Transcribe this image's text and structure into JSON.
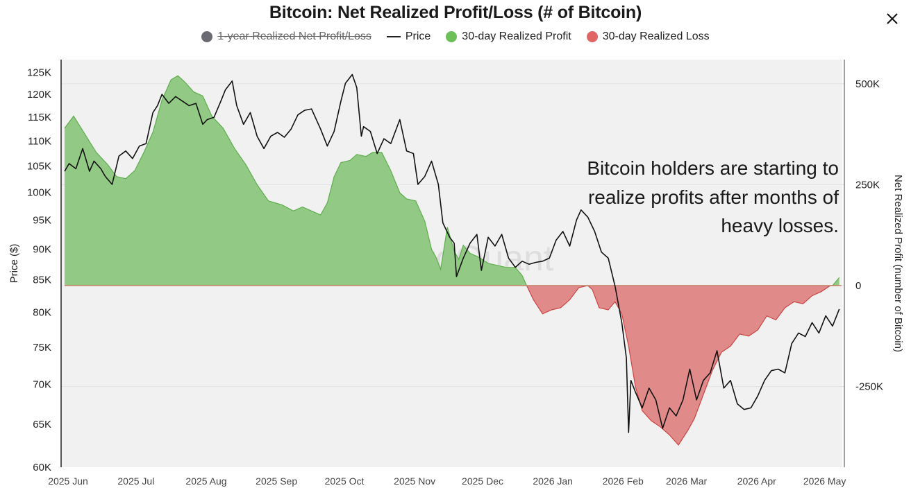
{
  "chart_data": {
    "type": "area",
    "title": "Bitcoin: Net Realized Profit/Loss (# of Bitcoin)",
    "legend": [
      {
        "label": "1-year Realized Net Profit/Loss",
        "color": "#6b6b73",
        "marker": "dot",
        "disabled": true
      },
      {
        "label": "Price",
        "color": "#222222",
        "marker": "line",
        "disabled": false
      },
      {
        "label": "30-day Realized Profit",
        "color": "#6dbf5a",
        "marker": "dot",
        "disabled": false
      },
      {
        "label": "30-day Realized Loss",
        "color": "#e06666",
        "marker": "dot",
        "disabled": false
      }
    ],
    "colors": {
      "profit_fill": "#92c984",
      "profit_line": "#5fae4e",
      "loss_fill": "#e08a8a",
      "loss_line": "#cc4444",
      "price_line": "#111111",
      "plot_bg": "#f1f1f1"
    },
    "x_labels": [
      "2025 Jun",
      "2025 Jul",
      "2025 Aug",
      "2025 Sep",
      "2025 Oct",
      "2025 Nov",
      "2025 Dec",
      "2026 Jan",
      "2026 Feb",
      "2026 Mar",
      "2026 Apr",
      "2026 May"
    ],
    "x_range": [
      "2025-06-01",
      "2026-05-10"
    ],
    "left_axis": {
      "label": "Price ($)",
      "scale": "log",
      "ylim": [
        60000,
        128000
      ],
      "ticks": [
        60000,
        65000,
        70000,
        75000,
        80000,
        85000,
        90000,
        95000,
        100000,
        105000,
        110000,
        115000,
        120000,
        125000
      ],
      "tick_labels": [
        "60K",
        "65K",
        "70K",
        "75K",
        "80K",
        "85K",
        "90K",
        "95K",
        "100K",
        "105K",
        "110K",
        "115K",
        "120K",
        "125K"
      ]
    },
    "right_axis": {
      "label": "Net Realized Profit (number of Bitcoin)",
      "ylim": [
        -450000,
        560000
      ],
      "ticks": [
        500000,
        250000,
        0,
        -250000
      ],
      "tick_labels": [
        "500K",
        "250K",
        "0",
        "-250K"
      ]
    },
    "annotation": [
      "Bitcoin holders are starting to",
      "realize profits after months of",
      "heavy losses."
    ],
    "watermark": "CryptoQuant",
    "series": [
      {
        "name": "Price",
        "axis": "left",
        "x": [
          "2025-06-01",
          "2025-06-03",
          "2025-06-06",
          "2025-06-09",
          "2025-06-12",
          "2025-06-14",
          "2025-06-17",
          "2025-06-19",
          "2025-06-22",
          "2025-06-25",
          "2025-06-28",
          "2025-07-01",
          "2025-07-04",
          "2025-07-07",
          "2025-07-10",
          "2025-07-12",
          "2025-07-14",
          "2025-07-17",
          "2025-07-20",
          "2025-07-23",
          "2025-07-26",
          "2025-07-29",
          "2025-08-01",
          "2025-08-03",
          "2025-08-06",
          "2025-08-09",
          "2025-08-11",
          "2025-08-14",
          "2025-08-16",
          "2025-08-19",
          "2025-08-22",
          "2025-08-25",
          "2025-08-28",
          "2025-08-31",
          "2025-09-03",
          "2025-09-06",
          "2025-09-09",
          "2025-09-12",
          "2025-09-15",
          "2025-09-18",
          "2025-09-22",
          "2025-09-25",
          "2025-09-28",
          "2025-10-01",
          "2025-10-03",
          "2025-10-06",
          "2025-10-08",
          "2025-10-10",
          "2025-10-11",
          "2025-10-14",
          "2025-10-17",
          "2025-10-20",
          "2025-10-23",
          "2025-10-27",
          "2025-10-30",
          "2025-11-02",
          "2025-11-04",
          "2025-11-07",
          "2025-11-10",
          "2025-11-13",
          "2025-11-15",
          "2025-11-18",
          "2025-11-20",
          "2025-11-21",
          "2025-11-24",
          "2025-11-27",
          "2025-11-30",
          "2025-12-02",
          "2025-12-05",
          "2025-12-08",
          "2025-12-11",
          "2025-12-14",
          "2025-12-17",
          "2025-12-20",
          "2025-12-23",
          "2025-12-26",
          "2025-12-29",
          "2026-01-01",
          "2026-01-04",
          "2026-01-07",
          "2026-01-10",
          "2026-01-13",
          "2026-01-15",
          "2026-01-18",
          "2026-01-21",
          "2026-01-24",
          "2026-01-27",
          "2026-01-30",
          "2026-02-02",
          "2026-02-04",
          "2026-02-05",
          "2026-02-06",
          "2026-02-08",
          "2026-02-11",
          "2026-02-14",
          "2026-02-17",
          "2026-02-20",
          "2026-02-23",
          "2026-02-26",
          "2026-03-01",
          "2026-03-04",
          "2026-03-07",
          "2026-03-10",
          "2026-03-13",
          "2026-03-16",
          "2026-03-19",
          "2026-03-22",
          "2026-03-25",
          "2026-03-28",
          "2026-03-31",
          "2026-04-03",
          "2026-04-06",
          "2026-04-09",
          "2026-04-12",
          "2026-04-15",
          "2026-04-18",
          "2026-04-21",
          "2026-04-24",
          "2026-04-27",
          "2026-04-30",
          "2026-05-03",
          "2026-05-06",
          "2026-05-09"
        ],
        "values": [
          104000,
          105500,
          104500,
          108500,
          104000,
          106000,
          104500,
          103000,
          101500,
          107000,
          108000,
          106500,
          109000,
          109500,
          116000,
          117500,
          120000,
          118000,
          119500,
          118500,
          117500,
          118000,
          113500,
          114500,
          115000,
          118500,
          121000,
          123000,
          117500,
          113500,
          116000,
          111000,
          108500,
          111000,
          111800,
          110800,
          112500,
          115500,
          116500,
          116800,
          112500,
          109000,
          112000,
          118500,
          122500,
          124500,
          121500,
          111000,
          113000,
          112000,
          107500,
          110500,
          109500,
          114500,
          108000,
          107500,
          101500,
          103000,
          106000,
          101500,
          94500,
          92000,
          91000,
          85500,
          88500,
          91000,
          92500,
          86500,
          92000,
          90500,
          92500,
          88500,
          87000,
          88000,
          87500,
          87800,
          88000,
          88500,
          91500,
          93000,
          90500,
          95000,
          96800,
          95500,
          93000,
          89500,
          88500,
          84000,
          78500,
          73500,
          64000,
          70500,
          69000,
          67000,
          69500,
          68000,
          64500,
          67000,
          66000,
          68000,
          72000,
          68000,
          70500,
          71500,
          74500,
          69500,
          70500,
          67500,
          66800,
          67000,
          68500,
          70500,
          71800,
          72000,
          71500,
          75500,
          77000,
          76500,
          78500,
          77000,
          79500,
          78000,
          80500
        ]
      },
      {
        "name": "30-day Realized Profit",
        "axis": "right",
        "x": [
          "2025-06-01",
          "2025-06-05",
          "2025-06-10",
          "2025-06-15",
          "2025-06-20",
          "2025-06-24",
          "2025-06-28",
          "2025-07-02",
          "2025-07-06",
          "2025-07-10",
          "2025-07-14",
          "2025-07-18",
          "2025-07-21",
          "2025-07-24",
          "2025-07-28",
          "2025-08-01",
          "2025-08-05",
          "2025-08-10",
          "2025-08-15",
          "2025-08-20",
          "2025-08-25",
          "2025-08-30",
          "2025-09-05",
          "2025-09-10",
          "2025-09-14",
          "2025-09-18",
          "2025-09-22",
          "2025-09-25",
          "2025-09-28",
          "2025-10-01",
          "2025-10-05",
          "2025-10-08",
          "2025-10-12",
          "2025-10-15",
          "2025-10-19",
          "2025-10-23",
          "2025-10-27",
          "2025-10-30",
          "2025-11-03",
          "2025-11-07",
          "2025-11-10",
          "2025-11-12",
          "2025-11-14",
          "2025-11-17",
          "2025-11-20",
          "2025-11-22",
          "2025-11-24",
          "2025-11-27",
          "2025-12-01",
          "2025-12-05",
          "2025-12-09",
          "2025-12-13",
          "2025-12-17",
          "2025-12-20",
          "2025-12-22",
          "2026-05-06",
          "2026-05-09"
        ],
        "values": [
          390000,
          420000,
          375000,
          330000,
          300000,
          270000,
          265000,
          285000,
          330000,
          380000,
          460000,
          510000,
          520000,
          505000,
          480000,
          470000,
          420000,
          390000,
          340000,
          300000,
          250000,
          210000,
          200000,
          185000,
          195000,
          185000,
          175000,
          205000,
          270000,
          305000,
          310000,
          325000,
          320000,
          330000,
          330000,
          285000,
          230000,
          215000,
          210000,
          160000,
          90000,
          70000,
          40000,
          145000,
          85000,
          65000,
          100000,
          80000,
          70000,
          55000,
          50000,
          45000,
          45000,
          25000,
          0,
          0,
          20000
        ]
      },
      {
        "name": "30-day Realized Loss",
        "axis": "right",
        "x": [
          "2025-12-22",
          "2025-12-25",
          "2025-12-29",
          "2026-01-02",
          "2026-01-06",
          "2026-01-10",
          "2026-01-14",
          "2026-01-18",
          "2026-01-20",
          "2026-01-23",
          "2026-01-27",
          "2026-01-30",
          "2026-02-02",
          "2026-02-05",
          "2026-02-08",
          "2026-02-11",
          "2026-02-15",
          "2026-02-19",
          "2026-02-23",
          "2026-02-27",
          "2026-03-03",
          "2026-03-06",
          "2026-03-10",
          "2026-03-14",
          "2026-03-18",
          "2026-03-22",
          "2026-03-26",
          "2026-03-30",
          "2026-04-03",
          "2026-04-07",
          "2026-04-11",
          "2026-04-15",
          "2026-04-19",
          "2026-04-23",
          "2026-04-27",
          "2026-05-01",
          "2026-05-05",
          "2026-05-09"
        ],
        "values": [
          0,
          -35000,
          -70000,
          -60000,
          -55000,
          -35000,
          -5000,
          0,
          -10000,
          -55000,
          -60000,
          -40000,
          -70000,
          -150000,
          -250000,
          -310000,
          -335000,
          -350000,
          -370000,
          -395000,
          -360000,
          -330000,
          -270000,
          -210000,
          -165000,
          -150000,
          -120000,
          -125000,
          -110000,
          -75000,
          -85000,
          -55000,
          -40000,
          -45000,
          -25000,
          -15000,
          0,
          0
        ]
      }
    ]
  }
}
